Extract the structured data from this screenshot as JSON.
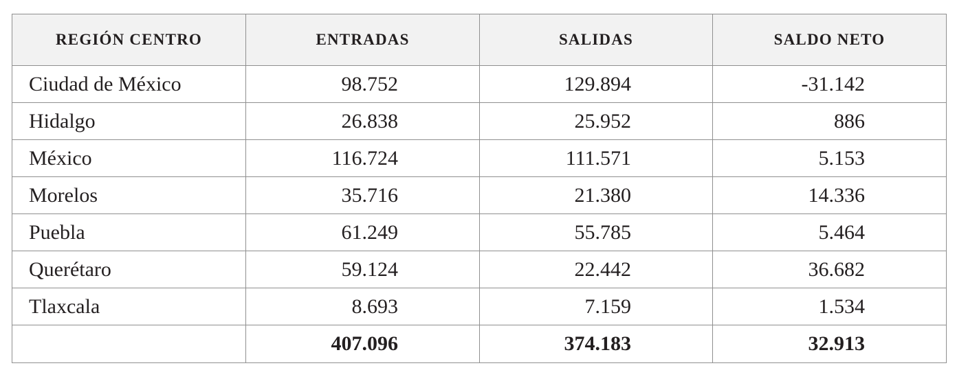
{
  "table": {
    "headers": [
      "REGIÓN CENTRO",
      "ENTRADAS",
      "SALIDAS",
      "SALDO NETO"
    ],
    "rows": [
      {
        "region": "Ciudad de México",
        "entradas": "98.752",
        "salidas": "129.894",
        "saldo": "-31.142"
      },
      {
        "region": "Hidalgo",
        "entradas": "26.838",
        "salidas": "25.952",
        "saldo": "886"
      },
      {
        "region": "México",
        "entradas": "116.724",
        "salidas": "111.571",
        "saldo": "5.153"
      },
      {
        "region": "Morelos",
        "entradas": "35.716",
        "salidas": "21.380",
        "saldo": "14.336"
      },
      {
        "region": "Puebla",
        "entradas": "61.249",
        "salidas": "55.785",
        "saldo": "5.464"
      },
      {
        "region": "Querétaro",
        "entradas": "59.124",
        "salidas": "22.442",
        "saldo": "36.682"
      },
      {
        "region": "Tlaxcala",
        "entradas": "8.693",
        "salidas": "7.159",
        "saldo": "1.534"
      }
    ],
    "total": {
      "region": "",
      "entradas": "407.096",
      "salidas": "374.183",
      "saldo": "32.913"
    }
  }
}
